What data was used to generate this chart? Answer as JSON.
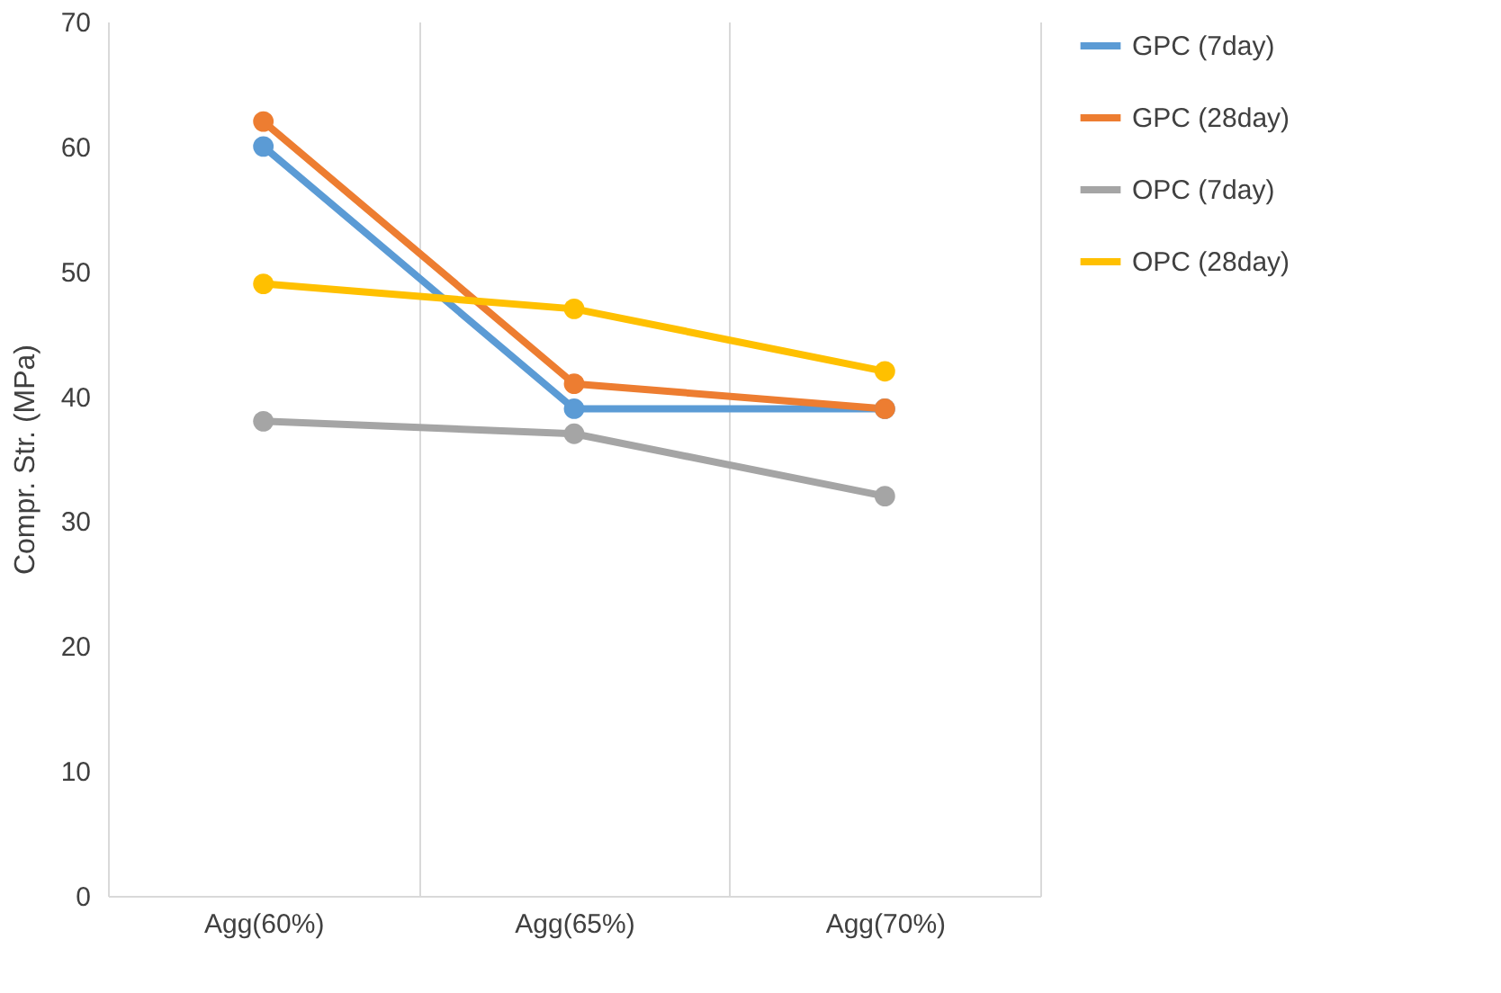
{
  "chart_data": {
    "type": "line",
    "ylabel": "Compr. Str. (MPa)",
    "categories": [
      "Agg(60%)",
      "Agg(65%)",
      "Agg(70%)"
    ],
    "series": [
      {
        "name": "GPC (7day)",
        "color": "#5b9bd5",
        "values": [
          60,
          39,
          39
        ]
      },
      {
        "name": "GPC (28day)",
        "color": "#ed7d31",
        "values": [
          62,
          41,
          39
        ]
      },
      {
        "name": "OPC (7day)",
        "color": "#a5a5a5",
        "values": [
          38,
          37,
          32
        ]
      },
      {
        "name": "OPC (28day)",
        "color": "#ffc000",
        "values": [
          49,
          47,
          42
        ]
      }
    ],
    "ylim": [
      0,
      70
    ],
    "yticks": [
      0,
      10,
      20,
      30,
      40,
      50,
      60,
      70
    ],
    "grid": "x",
    "legend": "right",
    "marker": "circle",
    "line_style": "solid"
  }
}
